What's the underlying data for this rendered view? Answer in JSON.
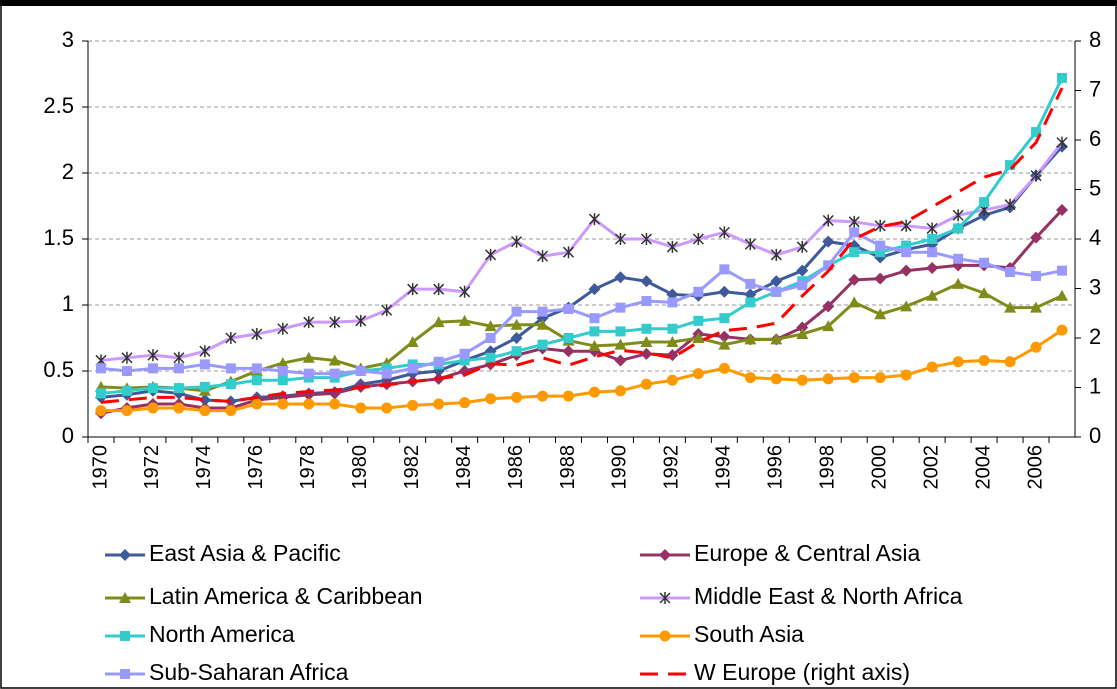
{
  "chart_data": {
    "type": "line",
    "categories": [
      "1970",
      null,
      "1972",
      null,
      "1974",
      null,
      "1976",
      null,
      "1978",
      null,
      "1980",
      null,
      "1982",
      null,
      "1984",
      null,
      "1986",
      null,
      "1988",
      null,
      "1990",
      null,
      "1992",
      null,
      "1994",
      null,
      "1996",
      null,
      "1998",
      null,
      "2000",
      null,
      "2002",
      null,
      "2004",
      null,
      "2006",
      null
    ],
    "ylim": [
      0,
      3
    ],
    "yticks": [
      0,
      0.5,
      1,
      1.5,
      2,
      2.5,
      3
    ],
    "y2lim": [
      0,
      8
    ],
    "y2ticks": [
      0,
      1,
      2,
      3,
      4,
      5,
      6,
      7,
      8
    ],
    "grid": true,
    "legend": "bottom",
    "series": [
      {
        "name": "East Asia & Pacific",
        "color": "#3e5a9b",
        "marker": "diamond",
        "values": [
          0.3,
          0.32,
          0.35,
          0.33,
          0.28,
          0.27,
          0.3,
          0.31,
          0.33,
          0.34,
          0.4,
          0.43,
          0.48,
          0.5,
          0.58,
          0.65,
          0.75,
          0.9,
          0.98,
          1.12,
          1.21,
          1.18,
          1.08,
          1.07,
          1.1,
          1.08,
          1.18,
          1.26,
          1.48,
          1.45,
          1.36,
          1.42,
          1.46,
          1.58,
          1.68,
          1.74,
          1.98,
          2.2
        ]
      },
      {
        "name": "Europe & Central Asia",
        "color": "#953163",
        "marker": "diamond",
        "values": [
          0.18,
          0.22,
          0.25,
          0.25,
          0.22,
          0.22,
          0.28,
          0.3,
          0.32,
          0.33,
          0.38,
          0.4,
          0.42,
          0.44,
          0.5,
          0.55,
          0.62,
          0.67,
          0.65,
          0.65,
          0.58,
          0.63,
          0.62,
          0.78,
          0.76,
          0.74,
          0.74,
          0.83,
          0.99,
          1.19,
          1.2,
          1.26,
          1.28,
          1.3,
          1.3,
          1.28,
          1.51,
          1.72
        ]
      },
      {
        "name": "Latin America & Caribbean",
        "color": "#808c1a",
        "marker": "triangle",
        "values": [
          0.38,
          0.37,
          0.38,
          0.37,
          0.35,
          0.42,
          0.5,
          0.56,
          0.6,
          0.58,
          0.52,
          0.56,
          0.72,
          0.87,
          0.88,
          0.84,
          0.85,
          0.85,
          0.73,
          0.69,
          0.7,
          0.72,
          0.72,
          0.75,
          0.7,
          0.74,
          0.74,
          0.78,
          0.84,
          1.02,
          0.93,
          0.99,
          1.07,
          1.16,
          1.09,
          0.98,
          0.98,
          1.07
        ]
      },
      {
        "name": "Middle East & North Africa",
        "color": "#cc99ff",
        "marker": "star",
        "values": [
          0.58,
          0.6,
          0.62,
          0.6,
          0.65,
          0.75,
          0.78,
          0.82,
          0.87,
          0.87,
          0.88,
          0.96,
          1.12,
          1.12,
          1.1,
          1.38,
          1.48,
          1.37,
          1.4,
          1.65,
          1.5,
          1.5,
          1.44,
          1.5,
          1.55,
          1.46,
          1.38,
          1.44,
          1.64,
          1.63,
          1.6,
          1.6,
          1.58,
          1.68,
          1.72,
          1.76,
          1.98,
          2.23
        ]
      },
      {
        "name": "North America",
        "color": "#33cccc",
        "marker": "square",
        "values": [
          0.33,
          0.35,
          0.37,
          0.37,
          0.38,
          0.4,
          0.43,
          0.43,
          0.45,
          0.45,
          0.5,
          0.52,
          0.55,
          0.55,
          0.58,
          0.6,
          0.65,
          0.7,
          0.75,
          0.8,
          0.8,
          0.82,
          0.82,
          0.88,
          0.9,
          1.02,
          1.1,
          1.18,
          1.3,
          1.4,
          1.4,
          1.45,
          1.5,
          1.58,
          1.78,
          2.06,
          2.31,
          2.72
        ]
      },
      {
        "name": "South Asia",
        "color": "#ff9900",
        "marker": "circle",
        "values": [
          0.2,
          0.2,
          0.22,
          0.22,
          0.2,
          0.2,
          0.25,
          0.25,
          0.25,
          0.25,
          0.22,
          0.22,
          0.24,
          0.25,
          0.26,
          0.29,
          0.3,
          0.31,
          0.31,
          0.34,
          0.35,
          0.4,
          0.43,
          0.48,
          0.52,
          0.45,
          0.44,
          0.43,
          0.44,
          0.45,
          0.45,
          0.47,
          0.53,
          0.57,
          0.58,
          0.57,
          0.68,
          0.81
        ]
      },
      {
        "name": "Sub-Saharan Africa",
        "color": "#9999ff",
        "marker": "square",
        "values": [
          0.52,
          0.5,
          0.52,
          0.52,
          0.55,
          0.52,
          0.52,
          0.5,
          0.48,
          0.48,
          0.5,
          0.48,
          0.52,
          0.57,
          0.63,
          0.75,
          0.95,
          0.95,
          0.97,
          0.9,
          0.98,
          1.03,
          1.02,
          1.1,
          1.27,
          1.16,
          1.1,
          1.15,
          1.3,
          1.55,
          1.45,
          1.4,
          1.4,
          1.35,
          1.32,
          1.25,
          1.22,
          1.26
        ]
      },
      {
        "name": "W Europe (right axis)",
        "color": "#ff0000",
        "marker": "none",
        "dash": true,
        "axis": "y2",
        "values": [
          0.7,
          0.75,
          0.8,
          0.8,
          0.75,
          0.72,
          0.8,
          0.88,
          0.92,
          0.95,
          1,
          1.05,
          1.12,
          1.18,
          1.25,
          1.48,
          1.45,
          1.6,
          1.45,
          1.62,
          1.75,
          1.7,
          1.6,
          1.92,
          2.15,
          2.2,
          2.3,
          2.85,
          3.35,
          4.0,
          4.25,
          4.35,
          4.65,
          4.95,
          5.25,
          5.4,
          5.95,
          7.05
        ]
      }
    ]
  }
}
